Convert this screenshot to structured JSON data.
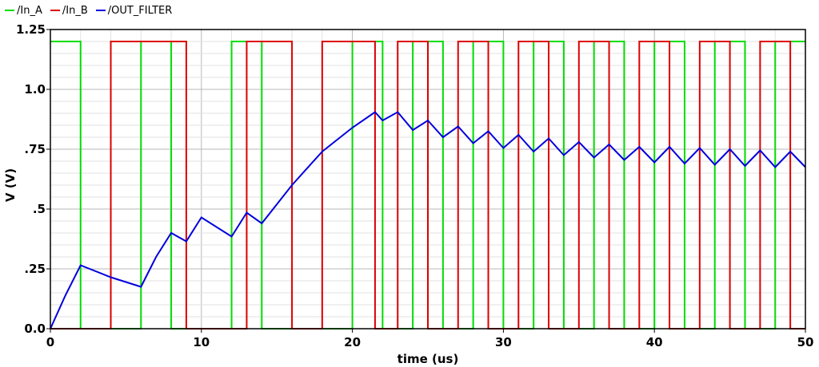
{
  "legend": {
    "in_a": "/In_A",
    "in_b": "/In_B",
    "out": "/OUT_FILTER"
  },
  "chart_data": {
    "type": "line",
    "xlabel": "time (us)",
    "ylabel": "V (V)",
    "xlim": [
      0,
      50
    ],
    "ylim": [
      0,
      1.25
    ],
    "x_ticks": [
      0,
      10,
      20,
      30,
      40,
      50
    ],
    "x_tick_labels": [
      "0",
      "10",
      "20",
      "30",
      "40",
      "50"
    ],
    "y_ticks": [
      0,
      0.25,
      0.5,
      0.75,
      1.0,
      1.25
    ],
    "y_tick_labels": [
      "0.0",
      ".25",
      ".5",
      ".75",
      "1.0",
      "1.25"
    ],
    "grid": true,
    "legend_position": "top-left",
    "series": [
      {
        "name": "/In_A",
        "color": "#00dd00",
        "kind": "step",
        "x": [
          0,
          2,
          2,
          6,
          6,
          8,
          8,
          12,
          12,
          14,
          14,
          20,
          20,
          22,
          22,
          24,
          24,
          26,
          26,
          28,
          28,
          30,
          30,
          32,
          32,
          34,
          34,
          36,
          36,
          38,
          38,
          40,
          40,
          42,
          42,
          44,
          44,
          46,
          46,
          48,
          48,
          50
        ],
        "y": [
          1.2,
          1.2,
          0,
          0,
          1.2,
          1.2,
          0,
          0,
          1.2,
          1.2,
          0,
          0,
          1.2,
          1.2,
          0,
          0,
          1.2,
          1.2,
          0,
          0,
          1.2,
          1.2,
          0,
          0,
          1.2,
          1.2,
          0,
          0,
          1.2,
          1.2,
          0,
          0,
          1.2,
          1.2,
          0,
          0,
          1.2,
          1.2,
          0,
          0,
          1.2,
          1.2
        ]
      },
      {
        "name": "/In_B",
        "color": "#dd0000",
        "kind": "step",
        "x": [
          0,
          4,
          4,
          9,
          9,
          13,
          13,
          16,
          16,
          18,
          18,
          21.5,
          21.5,
          23,
          23,
          25,
          25,
          27,
          27,
          29,
          29,
          31,
          31,
          33,
          33,
          35,
          35,
          37,
          37,
          39,
          39,
          41,
          41,
          43,
          43,
          45,
          45,
          47,
          47,
          49,
          49,
          50
        ],
        "y": [
          0,
          0,
          1.2,
          1.2,
          0,
          0,
          1.2,
          1.2,
          0,
          0,
          1.2,
          1.2,
          0,
          0,
          1.2,
          1.2,
          0,
          0,
          1.2,
          1.2,
          0,
          0,
          1.2,
          1.2,
          0,
          0,
          1.2,
          1.2,
          0,
          0,
          1.2,
          1.2,
          0,
          0,
          1.2,
          1.2,
          0,
          0,
          1.2,
          1.2,
          0,
          0
        ]
      },
      {
        "name": "/OUT_FILTER",
        "color": "#0000dd",
        "kind": "line",
        "x": [
          0,
          1,
          2,
          4,
          6,
          7,
          8,
          9,
          10,
          12,
          13,
          14,
          16,
          18,
          20,
          21.5,
          22,
          23,
          24,
          25,
          26,
          27,
          28,
          29,
          30,
          31,
          32,
          33,
          34,
          35,
          36,
          37,
          38,
          39,
          40,
          41,
          42,
          43,
          44,
          45,
          46,
          47,
          48,
          49,
          50
        ],
        "y": [
          0,
          0.14,
          0.265,
          0.215,
          0.175,
          0.3,
          0.4,
          0.365,
          0.465,
          0.385,
          0.485,
          0.44,
          0.6,
          0.74,
          0.84,
          0.905,
          0.87,
          0.905,
          0.83,
          0.87,
          0.8,
          0.845,
          0.775,
          0.825,
          0.755,
          0.81,
          0.74,
          0.795,
          0.725,
          0.78,
          0.715,
          0.77,
          0.705,
          0.76,
          0.695,
          0.76,
          0.69,
          0.755,
          0.685,
          0.75,
          0.68,
          0.745,
          0.675,
          0.74,
          0.675
        ]
      }
    ]
  }
}
